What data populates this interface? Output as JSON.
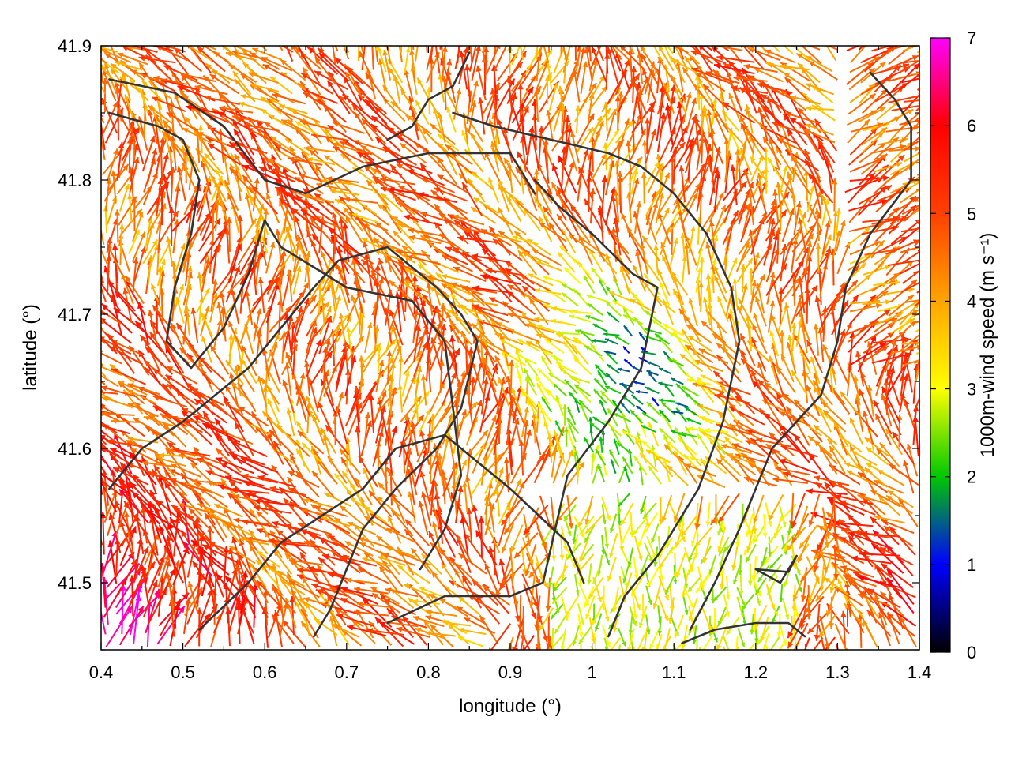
{
  "chart_data": {
    "type": "vector-field",
    "xlabel": "longitude (°)",
    "ylabel": "latitude (°)",
    "colorbar_label": "1000m-wind speed (m s⁻¹)",
    "xlim": [
      0.4,
      1.4
    ],
    "ylim": [
      41.45,
      41.9
    ],
    "clim": [
      0,
      7
    ],
    "xticks": [
      "0.4",
      "0.5",
      "0.6",
      "0.7",
      "0.8",
      "0.9",
      "1",
      "1.1",
      "1.2",
      "1.3",
      "1.4"
    ],
    "yticks": [
      "41.5",
      "41.6",
      "41.7",
      "41.8",
      "41.9"
    ],
    "cticks": [
      "0",
      "1",
      "2",
      "3",
      "4",
      "5",
      "6",
      "7"
    ],
    "colormap": [
      "#000000",
      "#0000ff",
      "#00c800",
      "#ffff00",
      "#ffa500",
      "#ff4000",
      "#ff0000",
      "#ff00ff"
    ],
    "grid": false,
    "legend": "colorbar-right",
    "contours": [
      [
        [
          0.41,
          41.875
        ],
        [
          0.49,
          41.865
        ],
        [
          0.55,
          41.84
        ],
        [
          0.6,
          41.8
        ],
        [
          0.65,
          41.79
        ],
        [
          0.72,
          41.81
        ],
        [
          0.8,
          41.82
        ],
        [
          0.86,
          41.82
        ],
        [
          0.9,
          41.82
        ],
        [
          0.93,
          41.79
        ]
      ],
      [
        [
          0.41,
          41.85
        ],
        [
          0.47,
          41.84
        ],
        [
          0.5,
          41.83
        ],
        [
          0.52,
          41.8
        ],
        [
          0.51,
          41.76
        ],
        [
          0.49,
          41.72
        ],
        [
          0.48,
          41.68
        ],
        [
          0.51,
          41.66
        ],
        [
          0.55,
          41.69
        ],
        [
          0.58,
          41.73
        ],
        [
          0.6,
          41.77
        ],
        [
          0.62,
          41.75
        ],
        [
          0.7,
          41.72
        ],
        [
          0.78,
          41.71
        ],
        [
          0.82,
          41.68
        ],
        [
          0.83,
          41.63
        ],
        [
          0.84,
          41.58
        ],
        [
          0.82,
          41.54
        ],
        [
          0.79,
          41.51
        ]
      ],
      [
        [
          0.41,
          41.57
        ],
        [
          0.45,
          41.6
        ],
        [
          0.5,
          41.62
        ],
        [
          0.54,
          41.64
        ],
        [
          0.58,
          41.66
        ],
        [
          0.62,
          41.69
        ],
        [
          0.66,
          41.72
        ],
        [
          0.69,
          41.74
        ],
        [
          0.75,
          41.75
        ],
        [
          0.81,
          41.72
        ],
        [
          0.84,
          41.7
        ],
        [
          0.86,
          41.68
        ],
        [
          0.84,
          41.63
        ],
        [
          0.81,
          41.6
        ],
        [
          0.76,
          41.57
        ],
        [
          0.72,
          41.54
        ],
        [
          0.7,
          41.51
        ],
        [
          0.68,
          41.48
        ],
        [
          0.66,
          41.46
        ]
      ],
      [
        [
          0.52,
          41.465
        ],
        [
          0.58,
          41.5
        ],
        [
          0.62,
          41.53
        ],
        [
          0.67,
          41.55
        ],
        [
          0.72,
          41.57
        ],
        [
          0.76,
          41.6
        ],
        [
          0.82,
          41.61
        ],
        [
          0.9,
          41.57
        ],
        [
          0.97,
          41.53
        ],
        [
          0.99,
          41.5
        ]
      ],
      [
        [
          0.75,
          41.47
        ],
        [
          0.82,
          41.49
        ],
        [
          0.9,
          41.49
        ],
        [
          0.94,
          41.5
        ],
        [
          0.97,
          41.58
        ],
        [
          1.02,
          41.62
        ],
        [
          1.06,
          41.66
        ],
        [
          1.08,
          41.72
        ],
        [
          1.05,
          41.73
        ],
        [
          1.0,
          41.76
        ],
        [
          0.96,
          41.78
        ],
        [
          0.93,
          41.8
        ]
      ],
      [
        [
          0.83,
          41.85
        ],
        [
          0.88,
          41.84
        ],
        [
          0.95,
          41.83
        ],
        [
          1.02,
          41.82
        ],
        [
          1.06,
          41.81
        ],
        [
          1.1,
          41.79
        ],
        [
          1.14,
          41.76
        ],
        [
          1.17,
          41.72
        ],
        [
          1.18,
          41.68
        ],
        [
          1.16,
          41.62
        ],
        [
          1.13,
          41.57
        ],
        [
          1.08,
          41.52
        ],
        [
          1.04,
          41.49
        ],
        [
          1.02,
          41.46
        ]
      ],
      [
        [
          1.34,
          41.88
        ],
        [
          1.37,
          41.86
        ],
        [
          1.39,
          41.84
        ],
        [
          1.39,
          41.8
        ],
        [
          1.34,
          41.76
        ],
        [
          1.31,
          41.72
        ],
        [
          1.3,
          41.68
        ],
        [
          1.28,
          41.64
        ],
        [
          1.25,
          41.62
        ],
        [
          1.22,
          41.6
        ],
        [
          1.2,
          41.57
        ],
        [
          1.18,
          41.54
        ],
        [
          1.15,
          41.5
        ],
        [
          1.12,
          41.465
        ]
      ],
      [
        [
          1.2,
          41.51
        ],
        [
          1.24,
          41.508
        ],
        [
          1.25,
          41.52
        ],
        [
          1.23,
          41.5
        ],
        [
          1.2,
          41.51
        ]
      ],
      [
        [
          1.11,
          41.455
        ],
        [
          1.15,
          41.465
        ],
        [
          1.2,
          41.47
        ],
        [
          1.24,
          41.47
        ],
        [
          1.26,
          41.46
        ]
      ],
      [
        [
          0.85,
          41.895
        ],
        [
          0.83,
          41.87
        ],
        [
          0.8,
          41.86
        ],
        [
          0.78,
          41.84
        ],
        [
          0.75,
          41.83
        ]
      ]
    ]
  }
}
